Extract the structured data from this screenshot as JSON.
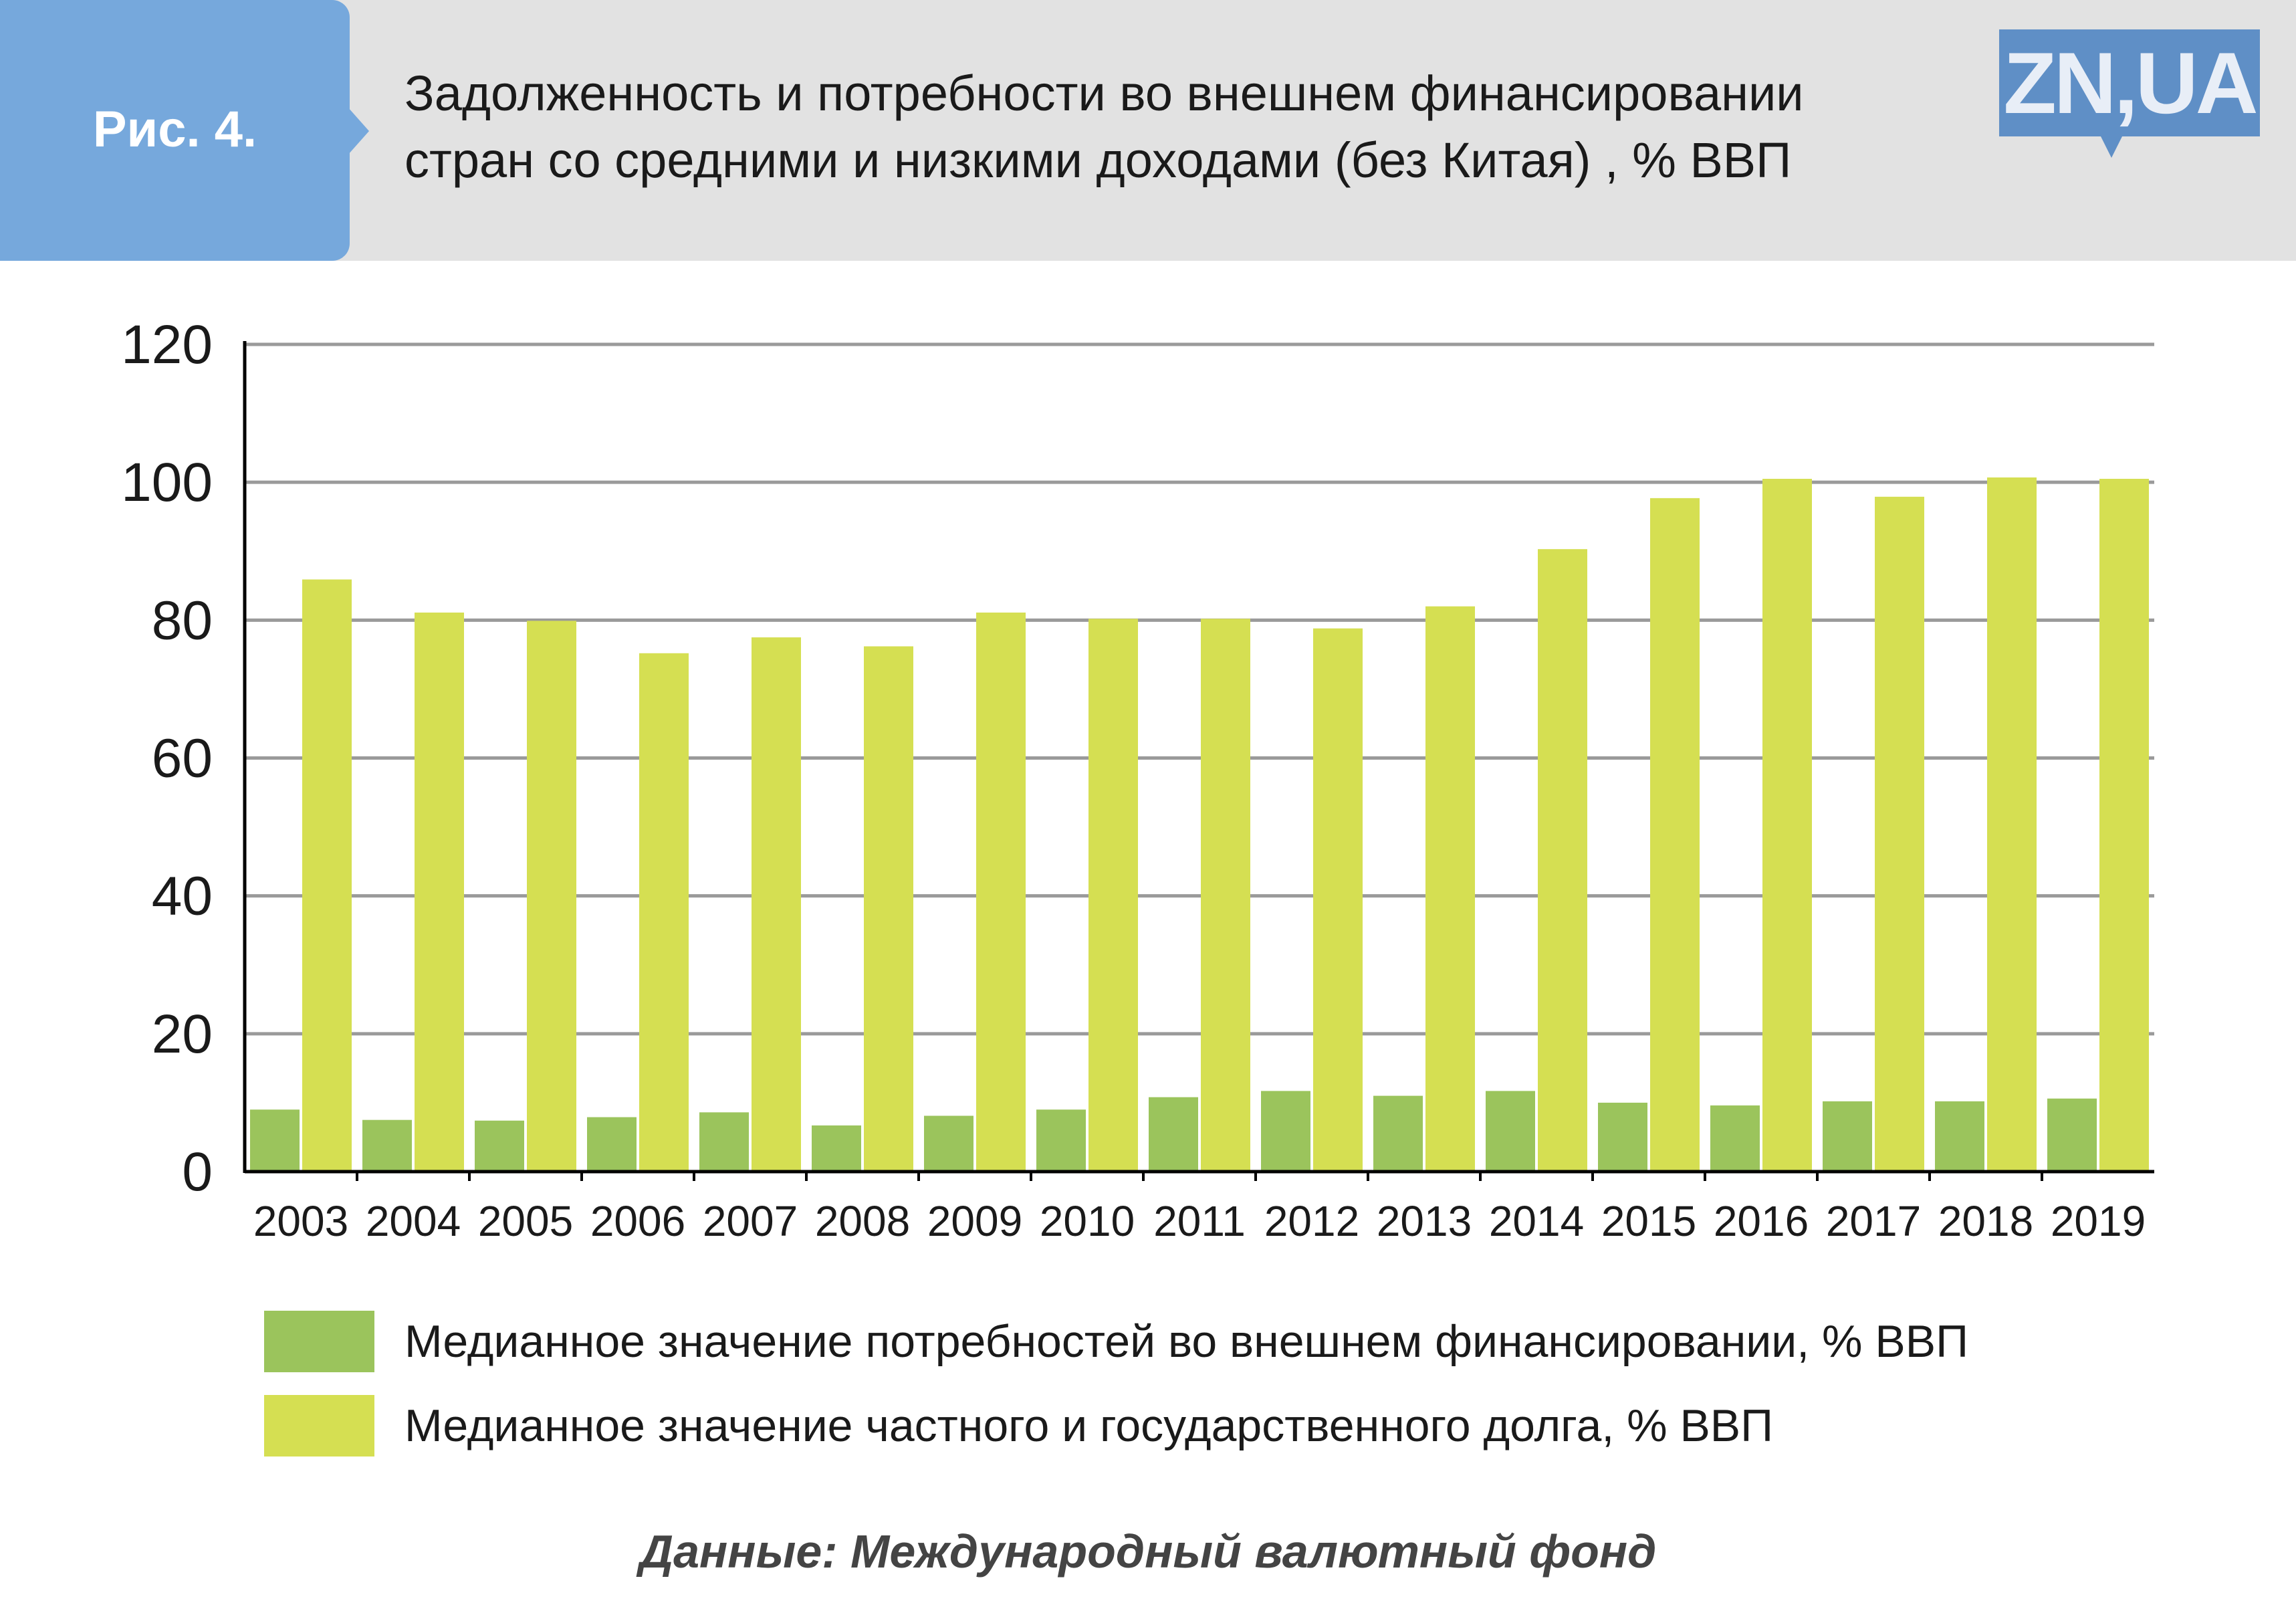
{
  "header": {
    "figure_label": "Рис. 4.",
    "title_line1": "Задолженность и потребности во внешнем финансировании",
    "title_line2": "стран со средними и низкими доходами (без Китая) , % ВВП",
    "logo": "ZN,UA"
  },
  "colors": {
    "header_bg": "#e2e2e2",
    "figure_box": "#76a8dc",
    "logo": "#5f8fc6",
    "series_financing": "#9bc45c",
    "series_debt": "#d5df52",
    "grid": "#9a9a9a"
  },
  "chart_data": {
    "type": "bar",
    "title": "Задолженность и потребности во внешнем финансировании стран со средними и низкими доходами (без Китая) , % ВВП",
    "xlabel": "",
    "ylabel": "% ВВП",
    "ylim": [
      0,
      120
    ],
    "yticks": [
      0,
      20,
      40,
      60,
      80,
      100,
      120
    ],
    "grid": true,
    "legend_position": "bottom",
    "categories": [
      "2003",
      "2004",
      "2005",
      "2006",
      "2007",
      "2008",
      "2009",
      "2010",
      "2011",
      "2012",
      "2013",
      "2014",
      "2015",
      "2016",
      "2017",
      "2018",
      "2019"
    ],
    "series": [
      {
        "name": "Медианное значение потребностей во внешнем финансировании, % ВВП",
        "values": [
          9.0,
          7.5,
          7.4,
          7.9,
          8.6,
          6.7,
          8.1,
          9.0,
          10.8,
          11.7,
          11.0,
          11.7,
          10.0,
          9.6,
          10.2,
          10.2,
          10.6
        ]
      },
      {
        "name": "Медианное значение частного и государственного долга, % ВВП",
        "values": [
          85.9,
          81.1,
          79.9,
          75.2,
          77.5,
          76.2,
          81.1,
          80.2,
          80.2,
          78.8,
          82.0,
          90.3,
          97.7,
          100.5,
          97.9,
          100.7,
          100.5
        ]
      }
    ]
  },
  "source": "Данные: Международный валютный фонд"
}
